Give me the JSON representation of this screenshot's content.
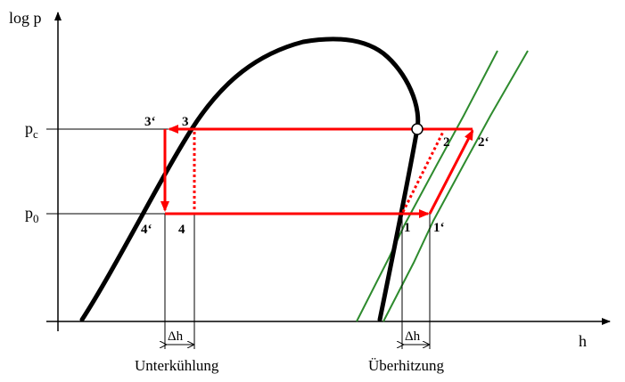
{
  "axes": {
    "y_label": "log p",
    "x_label": "h",
    "pc_base": "p",
    "pc_sub": "c",
    "p0_base": "p",
    "p0_sub": "0"
  },
  "points": {
    "p3": "3",
    "p3p": "3‘",
    "p4": "4",
    "p4p": "4‘",
    "p1": "1",
    "p1p": "1‘",
    "p2": "2",
    "p2p": "2‘"
  },
  "annotations": {
    "dh_left": "Δh",
    "dh_right": "Δh",
    "subcooling": "Unterkühlung",
    "superheating": "Überhitzung"
  },
  "colors": {
    "cycle": "#ff0000",
    "dome": "#000000",
    "isotherm": "#2e8b2e"
  }
}
